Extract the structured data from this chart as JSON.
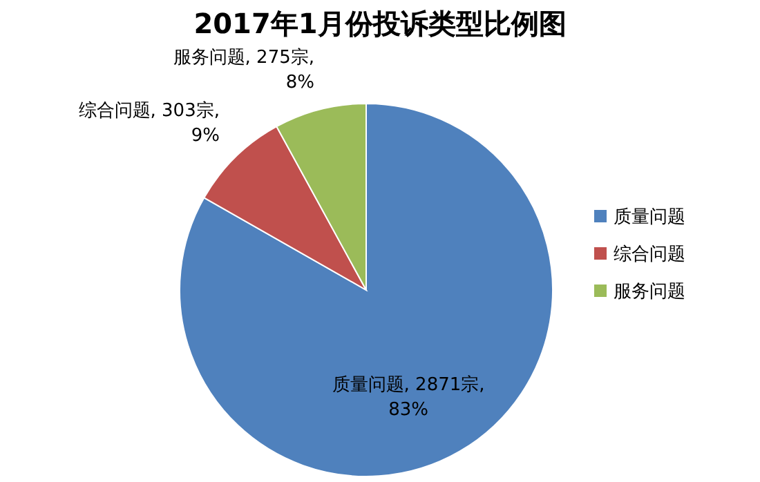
{
  "chart_data": {
    "type": "pie",
    "title": "2017年1月份投诉类型比例图",
    "categories": [
      "质量问题",
      "综合问题",
      "服务问题"
    ],
    "values": [
      2871,
      303,
      275
    ],
    "colors": [
      "#4f81bd",
      "#c0504d",
      "#9bbb59"
    ],
    "value_labels": [
      "质量问题, 2871宗, 83%",
      "综合问题, 303宗, 9%",
      "服务问题, 275宗, 8%"
    ],
    "legend": "right"
  }
}
